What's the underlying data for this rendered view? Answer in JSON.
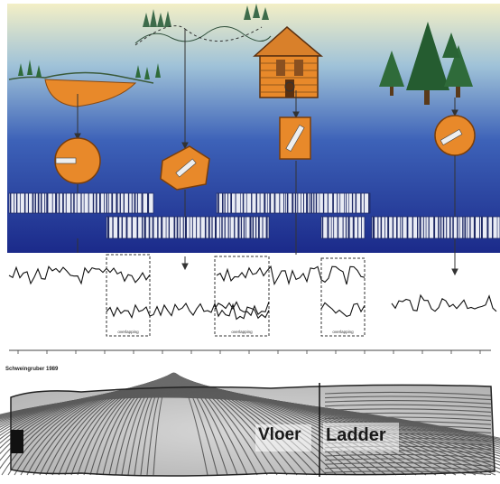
{
  "figure": {
    "credit": "Schweingruber 1989",
    "overlap_label": "overlapping",
    "photo_labels": {
      "left": "Vloer",
      "right": "Ladder"
    },
    "colors": {
      "sky_top": "#f5f0c8",
      "sky_bottom": "#1b2a8a",
      "wood_orange": "#e8892a",
      "forest_green": "#2f6b3a",
      "barcode": "#1f2a66"
    }
  }
}
